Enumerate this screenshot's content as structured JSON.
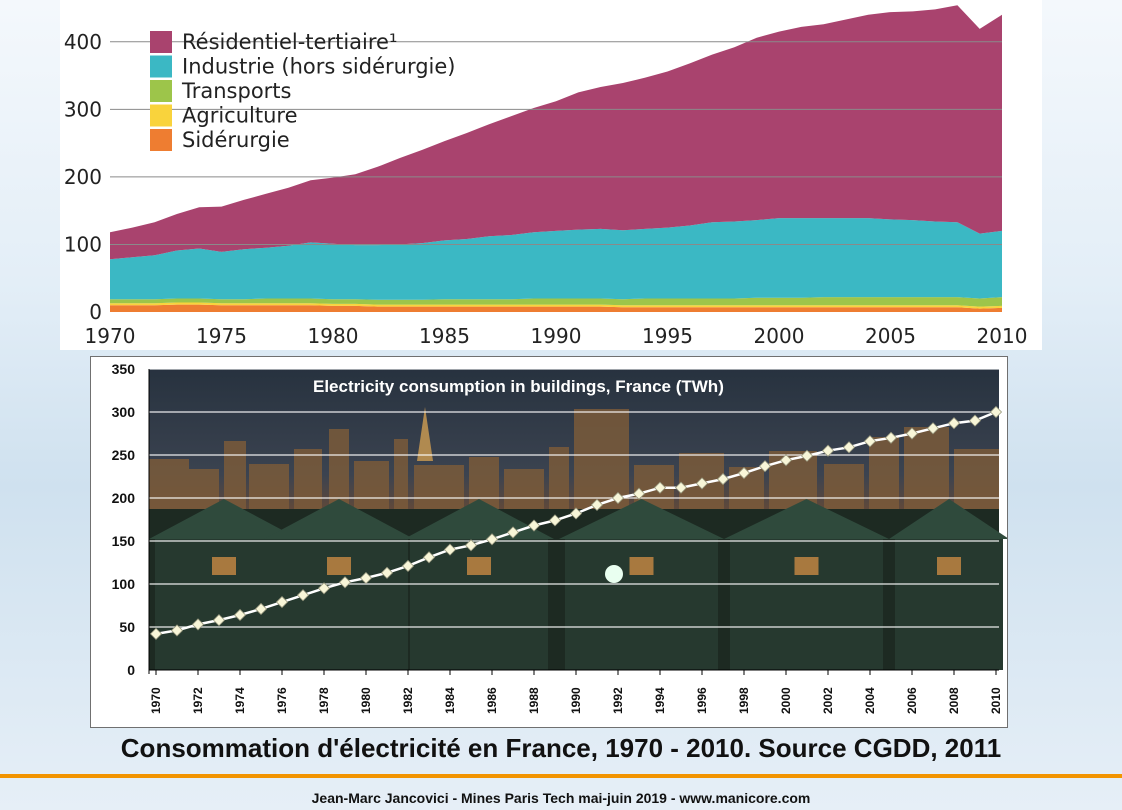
{
  "chart_data": [
    {
      "type": "area",
      "stacked": true,
      "title": "",
      "xlabel": "",
      "ylabel": "",
      "x": [
        1970,
        1971,
        1972,
        1973,
        1974,
        1975,
        1976,
        1977,
        1978,
        1979,
        1980,
        1981,
        1982,
        1983,
        1984,
        1985,
        1986,
        1987,
        1988,
        1989,
        1990,
        1991,
        1992,
        1993,
        1994,
        1995,
        1996,
        1997,
        1998,
        1999,
        2000,
        2001,
        2002,
        2003,
        2004,
        2005,
        2006,
        2007,
        2008,
        2009,
        2010
      ],
      "xticks": [
        "1970",
        "1975",
        "1980",
        "1985",
        "1990",
        "1995",
        "2000",
        "2005",
        "2010"
      ],
      "yticks": [
        "0",
        "100",
        "200",
        "300",
        "400"
      ],
      "xlim": [
        1970,
        2010
      ],
      "ylim": [
        0,
        450
      ],
      "grid": "horizontal",
      "legend_position": "top-left",
      "series": [
        {
          "name": "Sidérurgie",
          "color": "#ee7d31",
          "values": [
            10,
            10,
            10,
            11,
            11,
            10,
            10,
            10,
            10,
            10,
            9,
            9,
            8,
            8,
            8,
            8,
            8,
            8,
            8,
            8,
            8,
            8,
            8,
            7,
            7,
            7,
            7,
            7,
            7,
            7,
            7,
            7,
            7,
            7,
            7,
            7,
            7,
            7,
            7,
            5,
            6
          ]
        },
        {
          "name": "Agriculture",
          "color": "#f9d33c",
          "values": [
            3,
            3,
            3,
            3,
            3,
            3,
            3,
            3,
            3,
            3,
            3,
            3,
            3,
            3,
            3,
            3,
            3,
            3,
            3,
            3,
            3,
            3,
            3,
            3,
            3,
            3,
            3,
            3,
            3,
            3,
            3,
            3,
            3,
            3,
            3,
            3,
            3,
            3,
            3,
            3,
            3
          ]
        },
        {
          "name": "Transports",
          "color": "#9dc54a",
          "values": [
            6,
            6,
            6,
            6,
            6,
            6,
            6,
            7,
            7,
            7,
            7,
            7,
            7,
            7,
            7,
            8,
            8,
            8,
            8,
            9,
            9,
            9,
            9,
            9,
            10,
            10,
            10,
            10,
            10,
            11,
            11,
            11,
            12,
            12,
            12,
            12,
            12,
            12,
            12,
            12,
            13
          ]
        },
        {
          "name": "Industrie (hors sidérurgie)",
          "color": "#3bb8c4",
          "values": [
            59,
            62,
            65,
            71,
            74,
            70,
            74,
            75,
            78,
            83,
            82,
            80,
            81,
            82,
            84,
            87,
            89,
            93,
            95,
            98,
            100,
            102,
            103,
            102,
            103,
            105,
            108,
            113,
            114,
            115,
            118,
            118,
            117,
            117,
            117,
            115,
            114,
            112,
            111,
            96,
            98
          ]
        },
        {
          "name": "Résidentiel-tertiaire¹",
          "color": "#a9436e",
          "values": [
            40,
            44,
            49,
            54,
            61,
            67,
            73,
            80,
            86,
            92,
            98,
            105,
            116,
            128,
            138,
            147,
            157,
            166,
            176,
            184,
            192,
            203,
            210,
            218,
            224,
            231,
            240,
            248,
            258,
            270,
            276,
            283,
            287,
            294,
            301,
            307,
            309,
            314,
            321,
            303,
            320
          ]
        }
      ]
    },
    {
      "type": "line",
      "title": "Electricity consumption  in buildings, France (TWh)",
      "xlabel": "",
      "ylabel": "",
      "x": [
        1970,
        1971,
        1972,
        1973,
        1974,
        1975,
        1976,
        1977,
        1978,
        1979,
        1980,
        1981,
        1982,
        1983,
        1984,
        1985,
        1986,
        1987,
        1988,
        1989,
        1990,
        1991,
        1992,
        1993,
        1994,
        1995,
        1996,
        1997,
        1998,
        1999,
        2000,
        2001,
        2002,
        2003,
        2004,
        2005,
        2006,
        2007,
        2008,
        2009,
        2010
      ],
      "xticks": [
        "1970",
        "1972",
        "1974",
        "1976",
        "1978",
        "1980",
        "1982",
        "1984",
        "1986",
        "1988",
        "1990",
        "1992",
        "1994",
        "1996",
        "1998",
        "2000",
        "2002",
        "2004",
        "2006",
        "2008",
        "2010"
      ],
      "yticks": [
        "0",
        "50",
        "100",
        "150",
        "200",
        "250",
        "300",
        "350"
      ],
      "xlim": [
        1970,
        2010
      ],
      "ylim": [
        0,
        350
      ],
      "grid": "horizontal",
      "series": [
        {
          "name": "",
          "color": "#ffffff",
          "values": [
            42,
            46,
            53,
            58,
            64,
            71,
            79,
            87,
            95,
            102,
            107,
            113,
            121,
            131,
            140,
            145,
            152,
            160,
            168,
            174,
            182,
            192,
            200,
            205,
            212,
            212,
            217,
            222,
            229,
            237,
            244,
            249,
            255,
            259,
            266,
            270,
            275,
            281,
            287,
            290,
            300
          ]
        }
      ]
    }
  ],
  "caption": "Consommation d'électricité en France, 1970 - 2010. Source CGDD, 2011",
  "footer": "Jean-Marc Jancovici - Mines Paris Tech mai-juin 2019 - www.manicore.com",
  "colors": {
    "accent_rule": "#f29400",
    "grid2": "#ffffff",
    "gridline1": "#888888"
  }
}
